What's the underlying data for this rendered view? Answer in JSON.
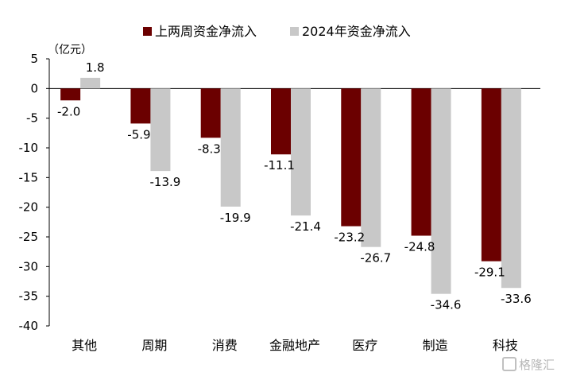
{
  "chart_data": {
    "type": "bar",
    "categories": [
      "其他",
      "周期",
      "消费",
      "金融地产",
      "医疗",
      "制造",
      "科技"
    ],
    "series": [
      {
        "name": "上两周资金净流入",
        "color": "#6b0000",
        "values": [
          -2.0,
          -5.9,
          -8.3,
          -11.1,
          -23.2,
          -24.8,
          -29.1
        ]
      },
      {
        "name": "2024年资金净流入",
        "color": "#c8c8c8",
        "values": [
          1.8,
          -13.9,
          -19.9,
          -21.4,
          -26.7,
          -34.6,
          -33.6
        ]
      }
    ],
    "unit": "（亿元）",
    "ylim": [
      -40,
      5
    ],
    "yticks": [
      5,
      0,
      -5,
      -10,
      -15,
      -20,
      -25,
      -30,
      -35,
      -40
    ],
    "legend_position": "top-center",
    "grid": false
  },
  "watermark": {
    "text": "格隆汇",
    "icon": "gelonghui-logo-icon"
  }
}
